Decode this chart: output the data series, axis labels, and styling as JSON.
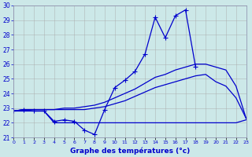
{
  "xlabel": "Graphe des températures (°c)",
  "bg_color": "#cce8e8",
  "plot_bg_color": "#cce8e8",
  "grid_color": "#aaaaaa",
  "line_color": "#0000cc",
  "hours": [
    0,
    1,
    2,
    3,
    4,
    5,
    6,
    7,
    8,
    9,
    10,
    11,
    12,
    13,
    14,
    15,
    16,
    17,
    18,
    19,
    20,
    21,
    22,
    23
  ],
  "temp_main": [
    22.8,
    22.9,
    22.8,
    22.8,
    22.1,
    22.2,
    22.1,
    21.5,
    21.2,
    22.9,
    24.4,
    24.9,
    25.5,
    26.7,
    29.2,
    27.8,
    29.3,
    29.7,
    25.8,
    null,
    null,
    null,
    null,
    null
  ],
  "temp_min": [
    22.8,
    22.8,
    22.8,
    22.8,
    22.0,
    22.0,
    22.0,
    22.0,
    22.0,
    22.0,
    22.0,
    22.0,
    22.0,
    22.0,
    22.0,
    22.0,
    22.0,
    22.0,
    22.0,
    22.0,
    22.0,
    22.0,
    22.0,
    22.2
  ],
  "temp_avg": [
    22.8,
    22.9,
    22.9,
    22.9,
    22.9,
    22.9,
    22.9,
    22.9,
    23.0,
    23.1,
    23.3,
    23.5,
    23.8,
    24.1,
    24.4,
    24.6,
    24.8,
    25.0,
    25.2,
    25.3,
    24.8,
    24.5,
    23.7,
    22.3
  ],
  "temp_max": [
    22.8,
    22.9,
    22.9,
    22.9,
    22.9,
    23.0,
    23.0,
    23.1,
    23.2,
    23.4,
    23.7,
    24.0,
    24.3,
    24.7,
    25.1,
    25.3,
    25.6,
    25.8,
    26.0,
    26.0,
    25.8,
    25.6,
    24.5,
    22.3
  ],
  "ylim_min": 21,
  "ylim_max": 30,
  "yticks": [
    21,
    22,
    23,
    24,
    25,
    26,
    27,
    28,
    29,
    30
  ]
}
